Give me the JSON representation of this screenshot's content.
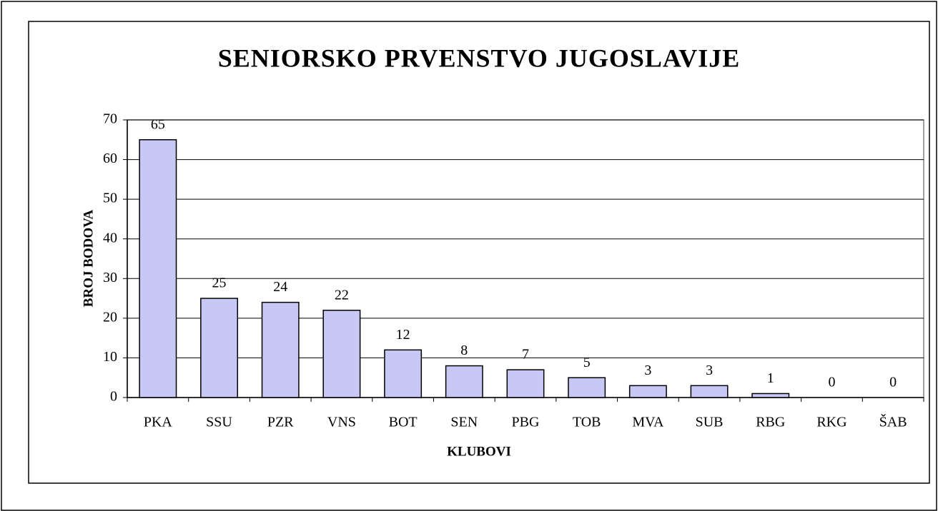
{
  "chart_data": {
    "type": "bar",
    "title": "SENIORSKO PRVENSTVO JUGOSLAVIJE",
    "x_label": "KLUBOVI",
    "y_label": "BROJ BODOVA",
    "categories": [
      "PKA",
      "SSU",
      "PZR",
      "VNS",
      "BOT",
      "SEN",
      "PBG",
      "TOB",
      "MVA",
      "SUB",
      "RBG",
      "RKG",
      "ŠAB"
    ],
    "values": [
      65,
      25,
      24,
      22,
      12,
      8,
      7,
      5,
      3,
      3,
      1,
      0,
      0
    ],
    "color": "#c8c8f5",
    "ylim": [
      0,
      70
    ],
    "yticks": [
      0,
      10,
      20,
      30,
      40,
      50,
      60,
      70
    ],
    "grid": true
  }
}
